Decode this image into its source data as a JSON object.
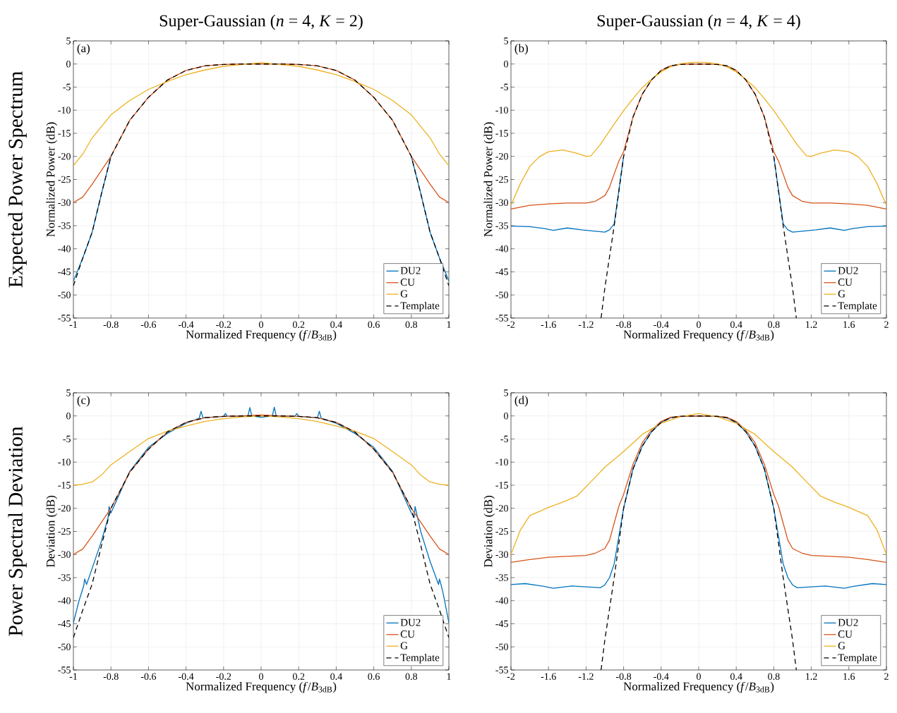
{
  "chart_data": [
    {
      "type": "line",
      "title": "Super-Gaussian (*n* = 4, *K* = 2)",
      "xlabel": "Normalized Frequency (*f*/*B*$_{3dB}$)",
      "ylabel": "Normalized Power (dB)",
      "annotations": [
        "(a)",
        "Expected Power Spectrum"
      ],
      "xlim": [
        -1,
        1
      ],
      "ylim": [
        -55,
        5
      ],
      "xticks": [
        -1,
        -0.8,
        -0.6,
        -0.4,
        -0.2,
        0,
        0.2,
        0.4,
        0.6,
        0.8,
        1
      ],
      "yticks": [
        5,
        0,
        -5,
        -10,
        -15,
        -20,
        -25,
        -30,
        -35,
        -40,
        -45,
        -50,
        -55
      ],
      "grid": true,
      "legend": "bottom right",
      "series": [
        {
          "name": "DU2",
          "color": "#0072bd",
          "x": [
            -1,
            -0.95,
            -0.9,
            -0.85,
            -0.8,
            -0.7,
            -0.6,
            -0.5,
            -0.4,
            -0.3,
            -0.2,
            -0.1,
            0,
            0.1,
            0.2,
            0.3,
            0.4,
            0.5,
            0.6,
            0.7,
            0.8,
            0.85,
            0.9,
            0.95,
            1
          ],
          "values": [
            -47,
            -42,
            -36.4,
            -28,
            -20,
            null,
            null,
            null,
            null,
            null,
            null,
            null,
            null,
            null,
            null,
            null,
            null,
            null,
            null,
            null,
            -20,
            -28,
            -36.4,
            -42,
            -47
          ]
        },
        {
          "name": "CU",
          "color": "#d95319",
          "x": [
            -1,
            -0.95,
            -0.9,
            -0.85,
            -0.8,
            -0.7,
            -0.6,
            -0.5,
            -0.4,
            -0.3,
            -0.2,
            -0.1,
            0,
            0.1,
            0.2,
            0.3,
            0.4,
            0.5,
            0.6,
            0.7,
            0.8,
            0.85,
            0.9,
            0.95,
            1
          ],
          "values": [
            -30,
            -28.8,
            -26,
            -23,
            -20,
            -12.2,
            -7.2,
            -3.5,
            -1.4,
            -0.4,
            -0.1,
            0,
            0,
            0,
            -0.1,
            -0.4,
            -1.4,
            -3.5,
            -7.2,
            -12.2,
            -20,
            -23,
            -26,
            -28.8,
            -30
          ]
        },
        {
          "name": "G",
          "color": "#edb120",
          "x": [
            -1,
            -0.95,
            -0.9,
            -0.8,
            -0.7,
            -0.6,
            -0.5,
            -0.4,
            -0.3,
            -0.2,
            -0.1,
            0,
            0.1,
            0.2,
            0.3,
            0.4,
            0.5,
            0.6,
            0.7,
            0.8,
            0.9,
            0.95,
            1
          ],
          "values": [
            -22,
            -19.5,
            -16,
            -11,
            -7.9,
            -5.5,
            -3.8,
            -2.3,
            -1.3,
            -0.5,
            -0.1,
            0.3,
            -0.1,
            -0.5,
            -1.3,
            -2.3,
            -3.8,
            -5.5,
            -7.9,
            -11,
            -16,
            -19.5,
            -22
          ]
        },
        {
          "name": "Template",
          "color": "#000000",
          "line_style": "dashed",
          "x": [
            -1,
            -0.95,
            -0.9,
            -0.85,
            -0.8,
            -0.7,
            -0.6,
            -0.5,
            -0.4,
            -0.3,
            -0.2,
            -0.1,
            0,
            0.1,
            0.2,
            0.3,
            0.4,
            0.5,
            0.6,
            0.7,
            0.8,
            0.85,
            0.9,
            0.95,
            1
          ],
          "values": [
            -48,
            -42,
            -36.4,
            -28,
            -20,
            -12.2,
            -7.2,
            -3.5,
            -1.4,
            -0.4,
            -0.1,
            0,
            0,
            0,
            -0.1,
            -0.4,
            -1.4,
            -3.5,
            -7.2,
            -12.2,
            -20,
            -28,
            -36.4,
            -42,
            -48
          ]
        }
      ]
    },
    {
      "type": "line",
      "title": "Super-Gaussian (*n* = 4, *K* = 4)",
      "xlabel": "Normalized Frequency (*f*/*B*$_{3dB}$)",
      "ylabel": "Normalized Power (dB)",
      "annotations": [
        "(b)"
      ],
      "xlim": [
        -2,
        2
      ],
      "ylim": [
        -55,
        5
      ],
      "xticks": [
        -2,
        -1.6,
        -1.2,
        -0.8,
        -0.4,
        0,
        0.4,
        0.8,
        1.2,
        1.6,
        2
      ],
      "yticks": [
        5,
        0,
        -5,
        -10,
        -15,
        -20,
        -25,
        -30,
        -35,
        -40,
        -45,
        -50,
        -55
      ],
      "grid": true,
      "legend": "bottom right",
      "series": [
        {
          "name": "DU2",
          "color": "#0072bd",
          "x": [
            -2,
            -1.8,
            -1.65,
            -1.55,
            -1.4,
            -1.25,
            -1.1,
            -1,
            -0.95,
            -0.9,
            -0.8,
            -0.7,
            -0.6,
            -0.5,
            -0.4,
            -0.3,
            -0.2,
            0,
            0.2,
            0.3,
            0.4,
            0.5,
            0.6,
            0.7,
            0.8,
            0.9,
            0.95,
            1,
            1.1,
            1.25,
            1.4,
            1.55,
            1.65,
            1.8,
            2
          ],
          "values": [
            -35.1,
            -35.2,
            -35.6,
            -36,
            -35.5,
            -35.9,
            -36.2,
            -36.4,
            -35.9,
            -34.6,
            -20,
            null,
            null,
            null,
            null,
            null,
            null,
            null,
            null,
            null,
            null,
            null,
            null,
            null,
            -20,
            -34.6,
            -35.9,
            -36.4,
            -36.2,
            -35.9,
            -35.5,
            -36,
            -35.6,
            -35.2,
            -35.1
          ]
        },
        {
          "name": "CU",
          "color": "#d95319",
          "x": [
            -2,
            -1.8,
            -1.6,
            -1.4,
            -1.2,
            -1.1,
            -1,
            -0.95,
            -0.9,
            -0.85,
            -0.8,
            -0.7,
            -0.6,
            -0.5,
            -0.4,
            -0.3,
            -0.2,
            0,
            0.2,
            0.3,
            0.4,
            0.5,
            0.6,
            0.7,
            0.8,
            0.85,
            0.9,
            0.95,
            1,
            1.1,
            1.2,
            1.4,
            1.6,
            1.8,
            2
          ],
          "values": [
            -31.4,
            -30.6,
            -30.3,
            -30.1,
            -30.1,
            -29.7,
            -28.5,
            -26.7,
            -23.8,
            -21,
            -19,
            -11.5,
            -6.5,
            -3.4,
            -1.4,
            -0.4,
            -0.1,
            0,
            -0.1,
            -0.4,
            -1.4,
            -3.4,
            -6.5,
            -11.5,
            -19,
            -21,
            -23.8,
            -26.7,
            -28.5,
            -29.7,
            -30.1,
            -30.1,
            -30.3,
            -30.6,
            -31.4
          ]
        },
        {
          "name": "G",
          "color": "#edb120",
          "x": [
            -2,
            -1.9,
            -1.8,
            -1.7,
            -1.6,
            -1.45,
            -1.3,
            -1.2,
            -1.15,
            -1.05,
            -0.9,
            -0.8,
            -0.7,
            -0.6,
            -0.5,
            -0.4,
            -0.3,
            -0.2,
            -0.1,
            0,
            0.1,
            0.2,
            0.3,
            0.4,
            0.5,
            0.6,
            0.7,
            0.8,
            0.9,
            1.05,
            1.15,
            1.2,
            1.3,
            1.45,
            1.6,
            1.7,
            1.8,
            1.9,
            2
          ],
          "values": [
            -30.6,
            -25.9,
            -22.2,
            -20.1,
            -19,
            -18.6,
            -19.3,
            -20,
            -19.9,
            -17.5,
            -13,
            -10.1,
            -7.5,
            -5.1,
            -3.3,
            -1.7,
            -0.6,
            0,
            0.3,
            0.4,
            0.3,
            0,
            -0.6,
            -1.7,
            -3.3,
            -5.1,
            -7.5,
            -10.1,
            -13,
            -17.5,
            -19.9,
            -20,
            -19.3,
            -18.6,
            -19,
            -20.1,
            -22.2,
            -25.9,
            -30.6
          ]
        },
        {
          "name": "Template",
          "color": "#000000",
          "line_style": "dashed",
          "x": [
            -1.04,
            -1,
            -0.9,
            -0.8,
            -0.7,
            -0.6,
            -0.5,
            -0.4,
            -0.3,
            -0.2,
            0,
            0.2,
            0.3,
            0.4,
            0.5,
            0.6,
            0.7,
            0.8,
            0.9,
            1,
            1.04
          ],
          "values": [
            -55,
            -48.5,
            -35,
            -20,
            -11.5,
            -6.5,
            -3.4,
            -1.4,
            -0.4,
            -0.1,
            0,
            -0.1,
            -0.4,
            -1.4,
            -3.4,
            -6.5,
            -11.5,
            -20,
            -35,
            -48.5,
            -55
          ]
        }
      ]
    },
    {
      "type": "line",
      "xlabel": "Normalized Frequency (*f*/*B*$_{3dB}$)",
      "ylabel": "Deviation (dB)",
      "annotations": [
        "(c)",
        "Power Spectral Deviation"
      ],
      "xlim": [
        -1,
        1
      ],
      "ylim": [
        -55,
        5
      ],
      "xticks": [
        -1,
        -0.8,
        -0.6,
        -0.4,
        -0.2,
        0,
        0.2,
        0.4,
        0.6,
        0.8,
        1
      ],
      "yticks": [
        5,
        0,
        -5,
        -10,
        -15,
        -20,
        -25,
        -30,
        -35,
        -40,
        -45,
        -50,
        -55
      ],
      "grid": true,
      "legend": "bottom right",
      "series": [
        {
          "name": "DU2",
          "color": "#0072bd",
          "x": [
            -1,
            -0.97,
            -0.945,
            -0.94,
            -0.93,
            -0.9,
            -0.85,
            -0.815,
            -0.81,
            -0.8,
            -0.7,
            -0.6,
            -0.5,
            -0.4,
            -0.33,
            -0.32,
            -0.31,
            -0.2,
            -0.19,
            -0.18,
            -0.07,
            -0.06,
            -0.05,
            0,
            0.06,
            0.07,
            0.08,
            0.18,
            0.19,
            0.2,
            0.3,
            0.31,
            0.32,
            0.4,
            0.5,
            0.6,
            0.7,
            0.8,
            0.815,
            0.82,
            0.85,
            0.9,
            0.945,
            0.95,
            0.96,
            0.97,
            1
          ],
          "values": [
            -44.8,
            -40,
            -36.8,
            -35.3,
            -36.5,
            -33,
            -27,
            -22,
            -19.6,
            -21,
            -12,
            -6.8,
            -3.8,
            -1.6,
            -0.5,
            1,
            -0.4,
            -0.1,
            0.5,
            -0.1,
            0,
            1.8,
            0,
            -0.3,
            0,
            1.9,
            0,
            -0.1,
            0.5,
            -0.1,
            -0.4,
            1,
            -0.5,
            -1.6,
            -3.8,
            -6.8,
            -12,
            -21,
            -22,
            -19.6,
            -25,
            -31.5,
            -36.5,
            -35.3,
            -36.8,
            -38.5,
            -44.8
          ]
        },
        {
          "name": "CU",
          "color": "#d95319",
          "x": [
            -1,
            -0.95,
            -0.9,
            -0.85,
            -0.8,
            -0.7,
            -0.6,
            -0.5,
            -0.4,
            -0.3,
            -0.2,
            -0.1,
            0,
            0.1,
            0.2,
            0.3,
            0.4,
            0.5,
            0.6,
            0.7,
            0.8,
            0.85,
            0.9,
            0.95,
            1
          ],
          "values": [
            -30,
            -28.8,
            -26,
            -23,
            -20,
            -12.2,
            -7.2,
            -3.5,
            -1.4,
            -0.4,
            -0.1,
            0,
            0.2,
            0,
            -0.1,
            -0.4,
            -1.4,
            -3.5,
            -7.2,
            -12.2,
            -20,
            -23,
            -26,
            -28.8,
            -30
          ]
        },
        {
          "name": "G",
          "color": "#edb120",
          "x": [
            -1,
            -0.95,
            -0.9,
            -0.85,
            -0.8,
            -0.7,
            -0.6,
            -0.5,
            -0.4,
            -0.3,
            -0.2,
            -0.1,
            0,
            0.1,
            0.2,
            0.3,
            0.4,
            0.5,
            0.6,
            0.7,
            0.8,
            0.85,
            0.9,
            0.95,
            1
          ],
          "values": [
            -15,
            -14.8,
            -14.3,
            -12.8,
            -10.6,
            -7.7,
            -4.9,
            -3.3,
            -2.2,
            -1.2,
            -0.6,
            -0.2,
            0,
            -0.2,
            -0.6,
            -1.2,
            -2.2,
            -3.3,
            -4.9,
            -7.7,
            -10.6,
            -12.8,
            -14.3,
            -14.8,
            -15
          ]
        },
        {
          "name": "Template",
          "color": "#000000",
          "line_style": "dashed",
          "x": [
            -1,
            -0.95,
            -0.9,
            -0.85,
            -0.8,
            -0.7,
            -0.6,
            -0.5,
            -0.4,
            -0.3,
            -0.2,
            -0.1,
            0,
            0.1,
            0.2,
            0.3,
            0.4,
            0.5,
            0.6,
            0.7,
            0.8,
            0.85,
            0.9,
            0.95,
            1
          ],
          "values": [
            -48,
            -42,
            -36.4,
            -28,
            -20,
            -12.2,
            -7.2,
            -3.5,
            -1.4,
            -0.4,
            -0.1,
            0,
            0,
            0,
            -0.1,
            -0.4,
            -1.4,
            -3.5,
            -7.2,
            -12.2,
            -20,
            -28,
            -36.4,
            -42,
            -48
          ]
        }
      ]
    },
    {
      "type": "line",
      "xlabel": "Normalized Frequency (*f*/*B*$_{3dB}$)",
      "ylabel": "Deviation (dB)",
      "annotations": [
        "(d)"
      ],
      "xlim": [
        -2,
        2
      ],
      "ylim": [
        -55,
        5
      ],
      "xticks": [
        -2,
        -1.6,
        -1.2,
        -0.8,
        -0.4,
        0,
        0.4,
        0.8,
        1.2,
        1.6,
        2
      ],
      "yticks": [
        5,
        0,
        -5,
        -10,
        -15,
        -20,
        -25,
        -30,
        -35,
        -40,
        -45,
        -50,
        -55
      ],
      "grid": true,
      "legend": "bottom right",
      "series": [
        {
          "name": "DU2",
          "color": "#0072bd",
          "x": [
            -2,
            -1.85,
            -1.65,
            -1.55,
            -1.35,
            -1.2,
            -1.05,
            -1,
            -0.95,
            -0.9,
            -0.8,
            -0.7,
            -0.6,
            -0.5,
            -0.4,
            -0.3,
            -0.2,
            0,
            0.2,
            0.3,
            0.4,
            0.5,
            0.6,
            0.7,
            0.8,
            0.9,
            0.95,
            1,
            1.05,
            1.2,
            1.35,
            1.55,
            1.65,
            1.85,
            2
          ],
          "values": [
            -36.5,
            -36.3,
            -36.9,
            -37.3,
            -36.8,
            -37,
            -37.2,
            -36.6,
            -35,
            -32,
            -20,
            -11.5,
            -6.5,
            -3.4,
            -1.4,
            -0.4,
            -0.1,
            0,
            -0.1,
            -0.4,
            -1.4,
            -3.4,
            -6.5,
            -11.5,
            -20,
            -32,
            -35,
            -36.6,
            -37.2,
            -37,
            -36.8,
            -37.3,
            -36.9,
            -36.3,
            -36.5
          ]
        },
        {
          "name": "CU",
          "color": "#d95319",
          "x": [
            -2,
            -1.8,
            -1.6,
            -1.4,
            -1.2,
            -1.1,
            -1,
            -0.95,
            -0.9,
            -0.85,
            -0.8,
            -0.7,
            -0.6,
            -0.5,
            -0.4,
            -0.3,
            -0.2,
            0,
            0.2,
            0.3,
            0.4,
            0.5,
            0.6,
            0.7,
            0.8,
            0.85,
            0.9,
            0.95,
            1,
            1.1,
            1.2,
            1.4,
            1.6,
            1.8,
            2
          ],
          "values": [
            -31.7,
            -31.1,
            -30.6,
            -30.4,
            -30.2,
            -29.7,
            -28.7,
            -26.9,
            -23.2,
            -19.5,
            -17,
            -10.5,
            -5.8,
            -3,
            -1.2,
            -0.3,
            -0.1,
            0,
            -0.1,
            -0.3,
            -1.2,
            -3,
            -5.8,
            -10.5,
            -17,
            -19.5,
            -23.2,
            -26.9,
            -28.7,
            -29.7,
            -30.2,
            -30.4,
            -30.6,
            -31.1,
            -31.7
          ]
        },
        {
          "name": "G",
          "color": "#edb120",
          "x": [
            -2,
            -1.9,
            -1.8,
            -1.6,
            -1.45,
            -1.3,
            -1.15,
            -1,
            -0.8,
            -0.6,
            -0.4,
            -0.2,
            0,
            0.2,
            0.4,
            0.6,
            0.8,
            1,
            1.15,
            1.3,
            1.45,
            1.6,
            1.8,
            1.9,
            2
          ],
          "values": [
            -30,
            -24.7,
            -21.6,
            -19.8,
            -18.7,
            -17.4,
            -14.3,
            -11.1,
            -7.7,
            -4,
            -1.6,
            -0.2,
            0.5,
            -0.2,
            -1.6,
            -4,
            -7.7,
            -11.1,
            -14.3,
            -17.4,
            -18.7,
            -19.8,
            -21.6,
            -24.7,
            -30
          ]
        },
        {
          "name": "Template",
          "color": "#000000",
          "line_style": "dashed",
          "x": [
            -1.04,
            -1,
            -0.9,
            -0.8,
            -0.7,
            -0.6,
            -0.5,
            -0.4,
            -0.3,
            -0.2,
            0,
            0.2,
            0.3,
            0.4,
            0.5,
            0.6,
            0.7,
            0.8,
            0.9,
            1,
            1.04
          ],
          "values": [
            -55,
            -48.5,
            -35,
            -20,
            -11.5,
            -6.5,
            -3.4,
            -1.4,
            -0.4,
            -0.1,
            0,
            -0.1,
            -0.4,
            -1.4,
            -3.4,
            -6.5,
            -11.5,
            -20,
            -35,
            -48.5,
            -55
          ]
        }
      ]
    }
  ]
}
